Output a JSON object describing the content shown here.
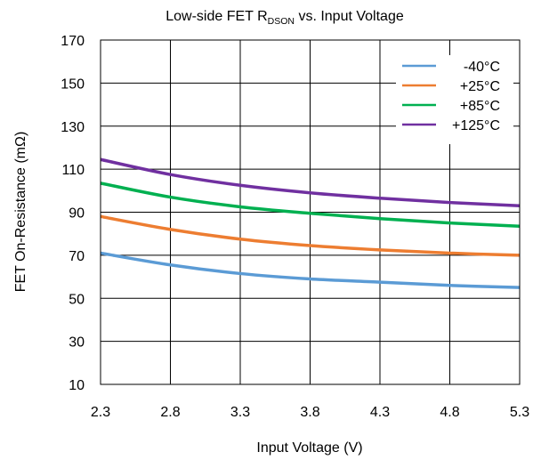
{
  "chart_data": {
    "type": "line",
    "title_main": "Low-side FET R",
    "title_sub": "DSON",
    "title_rest": " vs. Input Voltage",
    "xlabel": "Input Voltage (V)",
    "ylabel": "FET On-Resistance (mΩ)",
    "xlim": [
      2.3,
      5.3
    ],
    "ylim": [
      10,
      170
    ],
    "x_ticks": [
      "2.3",
      "2.8",
      "3.3",
      "3.8",
      "4.3",
      "4.8",
      "5.3"
    ],
    "y_ticks": [
      "10",
      "30",
      "50",
      "70",
      "90",
      "110",
      "130",
      "150",
      "170"
    ],
    "grid": true,
    "legend_position": "top-right",
    "series": [
      {
        "name": "-40°C",
        "color": "#5b9bd5",
        "x": [
          2.3,
          2.8,
          3.3,
          3.8,
          4.3,
          4.8,
          5.3
        ],
        "y": [
          71,
          65.5,
          61.5,
          59,
          57.5,
          56,
          55
        ]
      },
      {
        "name": "+25°C",
        "color": "#ed7d31",
        "x": [
          2.3,
          2.8,
          3.3,
          3.8,
          4.3,
          4.8,
          5.3
        ],
        "y": [
          88,
          82,
          77.5,
          74.5,
          72.5,
          71,
          70
        ]
      },
      {
        "name": "+85°C",
        "color": "#00b050",
        "x": [
          2.3,
          2.8,
          3.3,
          3.8,
          4.3,
          4.8,
          5.3
        ],
        "y": [
          103.5,
          97,
          92.5,
          89.5,
          87,
          85,
          83.5
        ]
      },
      {
        "name": "+125°C",
        "color": "#7030a0",
        "x": [
          2.3,
          2.8,
          3.3,
          3.8,
          4.3,
          4.8,
          5.3
        ],
        "y": [
          114.5,
          107.5,
          102.5,
          99,
          96.5,
          94.5,
          93
        ]
      }
    ]
  }
}
